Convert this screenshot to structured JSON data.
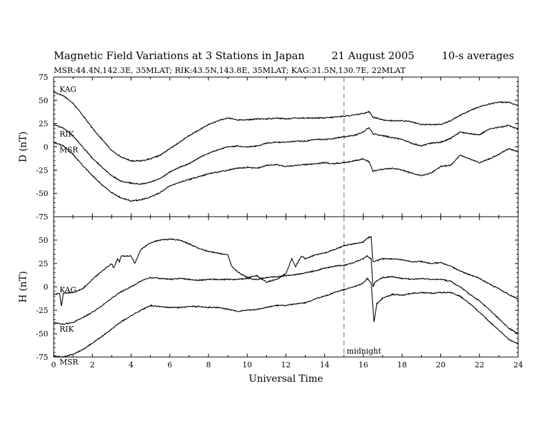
{
  "figure": {
    "title": "Magnetic Field Variations at 3 Stations in Japan",
    "date": "21  August  2005",
    "averaging": "10-s averages",
    "stations_line": "MSR:44.4N,142.3E, 35MLAT;   RIK:43.5N,143.8E, 35MLAT;   KAG:31.5N,130.7E, 22MLAT"
  },
  "chart_data": [
    {
      "type": "line",
      "panel": "top",
      "ylabel": "D (nT)",
      "xlim": [
        0,
        24
      ],
      "ylim": [
        -75,
        75
      ],
      "yticks": [
        -75,
        -50,
        -25,
        0,
        25,
        50,
        75
      ],
      "ytick_labels": [
        "-75",
        "-50",
        "-25",
        "0",
        "25",
        "50",
        "75"
      ],
      "vertical_marker": {
        "x": 15,
        "style": "dashed"
      },
      "series": [
        {
          "name": "KAG",
          "label_at": [
            0.3,
            62
          ],
          "x": [
            0,
            0.5,
            1,
            1.5,
            2,
            2.5,
            3,
            3.5,
            4,
            4.5,
            5,
            5.5,
            6,
            6.5,
            7,
            7.5,
            8,
            8.5,
            9,
            9.5,
            10,
            10.5,
            11,
            11.5,
            12,
            12.5,
            13,
            13.5,
            14,
            14.5,
            15,
            15.5,
            16,
            16.3,
            16.5,
            17,
            17.5,
            18,
            18.5,
            19,
            19.5,
            20,
            20.5,
            21,
            21.5,
            22,
            22.5,
            23,
            23.5,
            24
          ],
          "values": [
            59,
            55,
            47,
            34,
            20,
            8,
            -4,
            -11,
            -15,
            -15,
            -13,
            -9,
            -2,
            5,
            12,
            18,
            24,
            28,
            31,
            29,
            29,
            30,
            30,
            31,
            30,
            31,
            31,
            31,
            31,
            32,
            33,
            34,
            36,
            38,
            32,
            29,
            28,
            28,
            27,
            24,
            24,
            24,
            28,
            34,
            39,
            43,
            46,
            48,
            48,
            44
          ]
        },
        {
          "name": "RIK",
          "label_at": [
            0.3,
            14
          ],
          "x": [
            0,
            0.5,
            1,
            1.5,
            2,
            2.5,
            3,
            3.5,
            4,
            4.5,
            5,
            5.5,
            6,
            6.5,
            7,
            7.5,
            8,
            8.5,
            9,
            9.5,
            10,
            10.5,
            11,
            11.5,
            12,
            12.5,
            13,
            13.5,
            14,
            14.5,
            15,
            15.5,
            16,
            16.3,
            16.5,
            17,
            17.5,
            18,
            18.5,
            19,
            19.5,
            20,
            20.5,
            21,
            21.5,
            22,
            22.5,
            23,
            23.5,
            24
          ],
          "values": [
            24,
            20,
            12,
            0,
            -12,
            -22,
            -31,
            -37,
            -39,
            -40,
            -38,
            -34,
            -27,
            -22,
            -18,
            -12,
            -7,
            -3,
            0,
            1,
            0,
            1,
            4,
            5,
            5,
            6,
            6,
            8,
            8,
            9,
            11,
            12,
            16,
            21,
            14,
            12,
            10,
            8,
            4,
            1,
            4,
            5,
            9,
            16,
            14,
            13,
            19,
            21,
            23,
            19
          ]
        },
        {
          "name": "MSR",
          "label_at": [
            0.3,
            -3
          ],
          "x": [
            0,
            0.5,
            1,
            1.5,
            2,
            2.5,
            3,
            3.5,
            4,
            4.5,
            5,
            5.5,
            6,
            6.5,
            7,
            7.5,
            8,
            8.5,
            9,
            9.5,
            10,
            10.5,
            11,
            11.5,
            12,
            12.5,
            13,
            13.5,
            14,
            14.5,
            15,
            15.5,
            16,
            16.3,
            16.5,
            17,
            17.5,
            18,
            18.5,
            19,
            19.5,
            20,
            20.5,
            21,
            21.5,
            22,
            22.5,
            23,
            23.5,
            24
          ],
          "values": [
            5,
            1,
            -8,
            -20,
            -31,
            -41,
            -49,
            -55,
            -58,
            -57,
            -54,
            -49,
            -42,
            -38,
            -35,
            -32,
            -29,
            -27,
            -25,
            -23,
            -22,
            -23,
            -20,
            -19,
            -21,
            -20,
            -19,
            -18,
            -17,
            -18,
            -17,
            -15,
            -13,
            -16,
            -26,
            -24,
            -23,
            -25,
            -28,
            -31,
            -28,
            -21,
            -20,
            -9,
            -13,
            -17,
            -13,
            -8,
            -2,
            -5
          ]
        }
      ]
    },
    {
      "type": "line",
      "panel": "bottom",
      "ylabel": "H (nT)",
      "xlabel": "Universal Time",
      "xlim": [
        0,
        24
      ],
      "ylim": [
        -75,
        75
      ],
      "xticks": [
        0,
        2,
        4,
        6,
        8,
        10,
        12,
        14,
        16,
        18,
        20,
        22,
        24
      ],
      "xtick_labels": [
        "0",
        "2",
        "4",
        "6",
        "8",
        "10",
        "12",
        "14",
        "16",
        "18",
        "20",
        "22",
        "24"
      ],
      "yticks": [
        -75,
        -50,
        -25,
        0,
        25,
        50
      ],
      "ytick_labels": [
        "-75",
        "-50",
        "-25",
        "0",
        "25",
        "50"
      ],
      "vertical_marker": {
        "x": 15,
        "style": "dashed",
        "label": "midnight"
      },
      "series": [
        {
          "name": "KAG",
          "label_at": [
            0.3,
            -3
          ],
          "x": [
            0,
            0.3,
            0.4,
            0.5,
            1,
            1.5,
            2,
            2.5,
            3,
            3.1,
            3.3,
            3.4,
            3.5,
            4,
            4.2,
            4.5,
            5,
            5.5,
            6,
            6.5,
            7,
            7.5,
            8,
            8.5,
            9,
            9.2,
            9.5,
            10,
            10.5,
            11,
            11.5,
            12,
            12.3,
            12.5,
            12.8,
            13,
            13.5,
            14,
            14.5,
            15,
            15.5,
            16,
            16.2,
            16.4,
            16.5,
            17,
            17.5,
            18,
            18.5,
            19,
            19.5,
            20,
            20.5,
            21,
            21.5,
            22,
            22.5,
            23,
            23.5,
            24
          ],
          "values": [
            -8,
            -7,
            -20,
            -7,
            -6,
            -2,
            8,
            17,
            25,
            20,
            30,
            27,
            33,
            33,
            25,
            40,
            47,
            50,
            51,
            50,
            46,
            41,
            38,
            36,
            34,
            22,
            16,
            10,
            12,
            5,
            8,
            14,
            30,
            22,
            33,
            30,
            34,
            36,
            40,
            44,
            46,
            48,
            52,
            54,
            27,
            30,
            30,
            29,
            27,
            27,
            25,
            26,
            22,
            17,
            13,
            9,
            3,
            -2,
            -8,
            -13
          ]
        },
        {
          "name": "RIK",
          "label_at": [
            0.3,
            -45
          ],
          "x": [
            0,
            0.5,
            1,
            1.5,
            2,
            2.5,
            3,
            3.5,
            4,
            4.5,
            5,
            5.5,
            6,
            6.5,
            7,
            7.5,
            8,
            8.5,
            9,
            9.5,
            10,
            10.5,
            11,
            11.5,
            12,
            12.5,
            13,
            13.5,
            14,
            14.5,
            15,
            15.5,
            16,
            16.2,
            16.4,
            16.5,
            16.6,
            17,
            17.5,
            18,
            18.5,
            19,
            19.5,
            20,
            20.5,
            21,
            21.5,
            22,
            22.5,
            23,
            23.5,
            24
          ],
          "values": [
            -38,
            -40,
            -38,
            -33,
            -27,
            -20,
            -12,
            -5,
            0,
            6,
            10,
            9,
            8,
            9,
            8,
            7,
            8,
            8,
            8,
            8,
            9,
            8,
            10,
            11,
            12,
            13,
            15,
            17,
            20,
            22,
            23,
            26,
            30,
            33,
            30,
            0,
            5,
            10,
            11,
            9,
            8,
            9,
            8,
            8,
            6,
            0,
            -8,
            -15,
            -24,
            -34,
            -44,
            -50
          ]
        },
        {
          "name": "MSR",
          "label_at": [
            0.3,
            -80
          ],
          "x": [
            0,
            0.5,
            1,
            1.5,
            2,
            2.5,
            3,
            3.5,
            4,
            4.5,
            5,
            5.5,
            6,
            6.5,
            7,
            7.5,
            8,
            8.5,
            9,
            9.5,
            10,
            10.5,
            11,
            11.5,
            12,
            12.5,
            13,
            13.5,
            14,
            14.5,
            15,
            15.5,
            16,
            16.2,
            16.4,
            16.55,
            16.7,
            17,
            17.5,
            18,
            18.5,
            19,
            19.5,
            20,
            20.5,
            21,
            21.5,
            22,
            22.5,
            23,
            23.5,
            24
          ],
          "values": [
            -74,
            -75,
            -72,
            -67,
            -60,
            -53,
            -45,
            -37,
            -31,
            -25,
            -20,
            -21,
            -22,
            -22,
            -21,
            -21,
            -22,
            -22,
            -24,
            -26,
            -25,
            -24,
            -22,
            -20,
            -20,
            -18,
            -17,
            -13,
            -10,
            -6,
            -3,
            0,
            4,
            9,
            5,
            -38,
            -18,
            -12,
            -8,
            -9,
            -7,
            -6,
            -7,
            -6,
            -6,
            -10,
            -18,
            -27,
            -37,
            -46,
            -56,
            -61
          ]
        }
      ]
    }
  ]
}
